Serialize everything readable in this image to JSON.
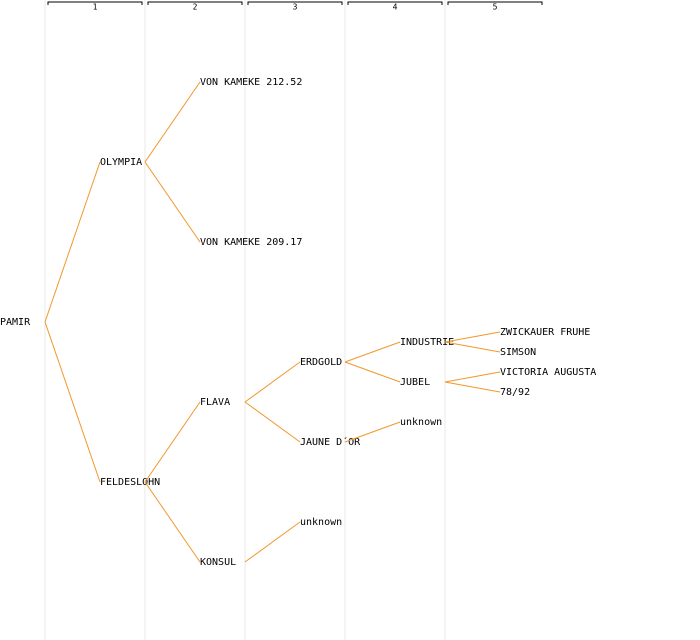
{
  "generations": [
    "1",
    "2",
    "3",
    "4",
    "5"
  ],
  "tree": {
    "label": "PAMIR",
    "children": [
      {
        "label": "OLYMPIA",
        "children": [
          {
            "label": "VON KAMEKE 212.52"
          },
          {
            "label": "VON KAMEKE 209.17"
          }
        ]
      },
      {
        "label": "FELDESLOHN",
        "children": [
          {
            "label": "FLAVA",
            "children": [
              {
                "label": "ERDGOLD",
                "children": [
                  {
                    "label": "INDUSTRIE",
                    "children": [
                      {
                        "label": "ZWICKAUER FRUHE"
                      },
                      {
                        "label": "SIMSON"
                      }
                    ]
                  },
                  {
                    "label": "JUBEL",
                    "children": [
                      {
                        "label": "VICTORIA AUGUSTA"
                      },
                      {
                        "label": "78/92"
                      }
                    ]
                  }
                ]
              },
              {
                "label": "JAUNE D´OR",
                "children": [
                  {
                    "label": "unknown"
                  }
                ]
              }
            ]
          },
          {
            "label": "KONSUL",
            "children": [
              {
                "label": "unknown"
              }
            ]
          }
        ]
      }
    ]
  }
}
